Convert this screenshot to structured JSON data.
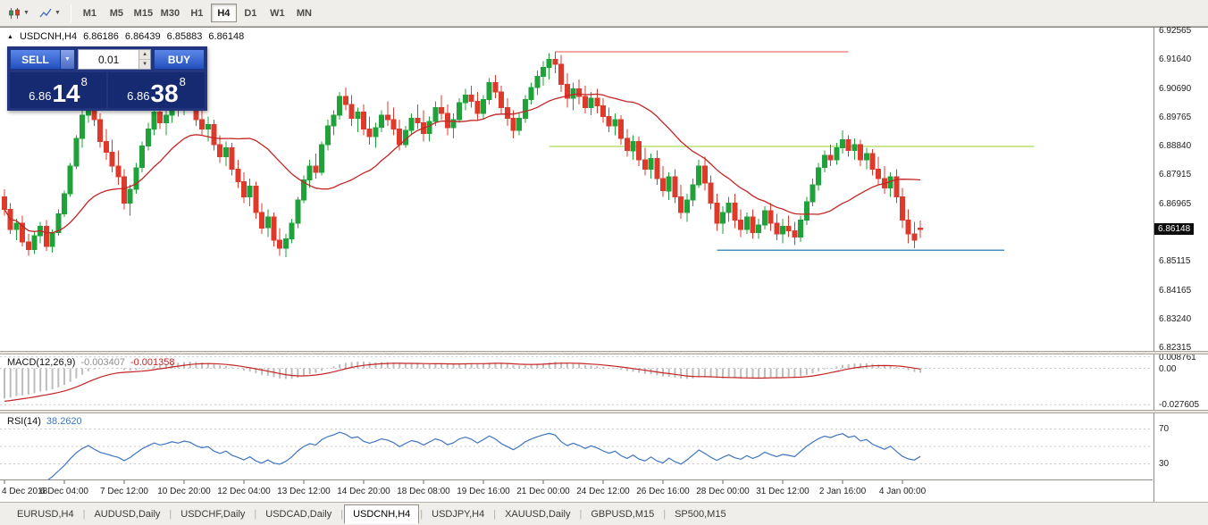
{
  "toolbar": {
    "icons": [
      "candlestick-chart-icon",
      "trendline-icon"
    ],
    "timeframes": [
      "M1",
      "M5",
      "M15",
      "M30",
      "H1",
      "H4",
      "D1",
      "W1",
      "MN"
    ],
    "active_timeframe": "H4"
  },
  "trade_panel": {
    "sell_label": "SELL",
    "buy_label": "BUY",
    "volume": "0.01",
    "sell_price": {
      "prefix": "6.86",
      "big": "14",
      "sup": "8"
    },
    "buy_price": {
      "prefix": "6.86",
      "big": "38",
      "sup": "8"
    }
  },
  "chart": {
    "header": {
      "symbol": "USDCNH,H4",
      "open": "6.86186",
      "high": "6.86439",
      "low": "6.85883",
      "close": "6.86148"
    },
    "price_axis": [
      "6.92565",
      "6.91640",
      "6.90690",
      "6.89765",
      "6.88840",
      "6.87915",
      "6.86965",
      "6.85115",
      "6.84165",
      "6.83240",
      "6.82315"
    ],
    "price_tag": "6.86148"
  },
  "macd_panel": {
    "title": "MACD(12,26,9)",
    "value_main": "-0.003407",
    "value_signal": "-0.001358",
    "axis_labels": [
      "0.008761",
      "0.00",
      "-0.027605"
    ]
  },
  "rsi_panel": {
    "title": "RSI(14)",
    "value": "38.2620",
    "axis_labels": [
      "70",
      "30"
    ]
  },
  "tabs": {
    "active_index": 4,
    "items": [
      "EURUSD,H4",
      "AUDUSD,Daily",
      "USDCHF,Daily",
      "USDCAD,Daily",
      "USDCNH,H4",
      "USDJPY,H4",
      "XAUUSD,Daily",
      "GBPUSD,M15",
      "SP500,M15"
    ]
  },
  "chart_data": {
    "type": "candlestick",
    "title": "USDCNH,H4",
    "y_range": [
      6.8222,
      6.9268
    ],
    "label_step": 10,
    "x_labels": [
      "4 Dec 2018",
      "6 Dec 04:00",
      "7 Dec 12:00",
      "10 Dec 20:00",
      "12 Dec 04:00",
      "13 Dec 12:00",
      "14 Dec 20:00",
      "18 Dec 08:00",
      "19 Dec 16:00",
      "21 Dec 00:00",
      "24 Dec 12:00",
      "26 Dec 16:00",
      "28 Dec 00:00",
      "31 Dec 12:00",
      "2 Jan 16:00",
      "4 Jan 00:00"
    ],
    "colors": {
      "up": "#1fa23a",
      "down": "#dd3a2c",
      "ma": "#c42525",
      "hist": "#bdbdbd",
      "signal": "#c42525",
      "rsi": "#3e74c0",
      "levels": "#c9c9c9"
    },
    "overlays": {
      "ma": {
        "type": "sma",
        "period": 20,
        "color": "#c42525"
      },
      "hlines": [
        {
          "name": "resistance-line",
          "price": 6.919,
          "from_bar": 92,
          "to_bar": 141,
          "color": "#e0524a"
        },
        {
          "name": "mid-line",
          "price": 6.8884,
          "from_bar": 91,
          "to_bar": 172,
          "color": "#9acd32"
        },
        {
          "name": "support-line",
          "price": 6.8548,
          "from_bar": 119,
          "to_bar": 167,
          "color": "#4a90c4"
        }
      ]
    },
    "macd": {
      "params": "12,26,9",
      "range": [
        -0.0315,
        0.0105
      ],
      "axis_levels": [
        0.008761,
        0,
        -0.027605
      ],
      "current_main": -0.003407,
      "current_signal": -0.001358
    },
    "rsi": {
      "period": 14,
      "range": [
        12,
        88
      ],
      "levels": [
        70,
        50,
        30
      ],
      "current": 38.262
    },
    "candles": [
      [
        6.872,
        6.8745,
        6.866,
        6.868
      ],
      [
        6.868,
        6.87,
        6.86,
        6.8615
      ],
      [
        6.8615,
        6.865,
        6.858,
        6.8635
      ],
      [
        6.8635,
        6.866,
        6.856,
        6.8575
      ],
      [
        6.8575,
        6.86,
        6.853,
        6.855
      ],
      [
        6.855,
        6.861,
        6.8535,
        6.8595
      ],
      [
        6.8595,
        6.864,
        6.857,
        6.8625
      ],
      [
        6.8625,
        6.8645,
        6.8545,
        6.856
      ],
      [
        6.856,
        6.8615,
        6.854,
        6.8605
      ],
      [
        6.8605,
        6.868,
        6.8595,
        6.8665
      ],
      [
        6.8665,
        6.874,
        6.8655,
        6.873
      ],
      [
        6.873,
        6.883,
        6.872,
        6.882
      ],
      [
        6.882,
        6.892,
        6.881,
        6.891
      ],
      [
        6.891,
        6.9,
        6.888,
        6.8985
      ],
      [
        6.8985,
        6.9055,
        6.896,
        6.904
      ],
      [
        6.904,
        6.906,
        6.895,
        6.897
      ],
      [
        6.897,
        6.899,
        6.888,
        6.89
      ],
      [
        6.89,
        6.894,
        6.884,
        6.8865
      ],
      [
        6.8865,
        6.8905,
        6.88,
        6.882
      ],
      [
        6.882,
        6.887,
        6.876,
        6.8785
      ],
      [
        6.8785,
        6.881,
        6.868,
        6.87
      ],
      [
        6.87,
        6.876,
        6.866,
        6.8745
      ],
      [
        6.8745,
        6.883,
        6.873,
        6.8815
      ],
      [
        6.8815,
        6.89,
        6.88,
        6.8885
      ],
      [
        6.8885,
        6.896,
        6.887,
        6.894
      ],
      [
        6.894,
        6.901,
        6.892,
        6.8995
      ],
      [
        6.8995,
        6.903,
        6.894,
        6.896
      ],
      [
        6.896,
        6.9,
        6.892,
        6.8985
      ],
      [
        6.8985,
        6.904,
        6.896,
        6.902
      ],
      [
        6.902,
        6.9045,
        6.898,
        6.9
      ],
      [
        6.9,
        6.905,
        6.8985,
        6.9035
      ],
      [
        6.9035,
        6.906,
        6.9,
        6.902
      ],
      [
        6.902,
        6.904,
        6.895,
        6.897
      ],
      [
        6.897,
        6.9,
        6.892,
        6.894
      ],
      [
        6.894,
        6.898,
        6.89,
        6.8955
      ],
      [
        6.8955,
        6.897,
        6.887,
        6.889
      ],
      [
        6.889,
        6.892,
        6.883,
        6.885
      ],
      [
        6.885,
        6.89,
        6.882,
        6.888
      ],
      [
        6.888,
        6.8895,
        6.879,
        6.881
      ],
      [
        6.881,
        6.884,
        6.875,
        6.877
      ],
      [
        6.877,
        6.88,
        6.87,
        6.872
      ],
      [
        6.872,
        6.878,
        6.869,
        6.8755
      ],
      [
        6.8755,
        6.877,
        6.865,
        6.867
      ],
      [
        6.867,
        6.87,
        6.86,
        6.862
      ],
      [
        6.862,
        6.868,
        6.859,
        6.8655
      ],
      [
        6.8655,
        6.867,
        6.856,
        6.858
      ],
      [
        6.858,
        6.862,
        6.853,
        6.8555
      ],
      [
        6.8555,
        6.86,
        6.8525,
        6.8585
      ],
      [
        6.8585,
        6.865,
        6.857,
        6.8635
      ],
      [
        6.8635,
        6.872,
        6.862,
        6.871
      ],
      [
        6.871,
        6.879,
        6.87,
        6.8775
      ],
      [
        6.8775,
        6.884,
        6.875,
        6.882
      ],
      [
        6.882,
        6.886,
        6.878,
        6.88
      ],
      [
        6.88,
        6.89,
        6.879,
        6.889
      ],
      [
        6.889,
        6.897,
        6.887,
        6.895
      ],
      [
        6.895,
        6.9,
        6.892,
        6.8985
      ],
      [
        6.8985,
        6.906,
        6.897,
        6.9045
      ],
      [
        6.9045,
        6.9075,
        6.9,
        6.902
      ],
      [
        6.902,
        6.905,
        6.895,
        6.8975
      ],
      [
        6.8975,
        6.901,
        6.893,
        6.8995
      ],
      [
        6.8995,
        6.902,
        6.892,
        6.894
      ],
      [
        6.894,
        6.898,
        6.889,
        6.8915
      ],
      [
        6.8915,
        6.896,
        6.888,
        6.8945
      ],
      [
        6.8945,
        6.9,
        6.893,
        6.8985
      ],
      [
        6.8985,
        6.903,
        6.895,
        6.897
      ],
      [
        6.897,
        6.901,
        6.892,
        6.894
      ],
      [
        6.894,
        6.897,
        6.887,
        6.889
      ],
      [
        6.889,
        6.895,
        6.888,
        6.8935
      ],
      [
        6.8935,
        6.899,
        6.892,
        6.8975
      ],
      [
        6.8975,
        6.902,
        6.894,
        6.896
      ],
      [
        6.896,
        6.9,
        6.89,
        6.8925
      ],
      [
        6.8925,
        6.898,
        6.89,
        6.8965
      ],
      [
        6.8965,
        6.903,
        6.895,
        6.901
      ],
      [
        6.901,
        6.905,
        6.897,
        6.899
      ],
      [
        6.899,
        6.902,
        6.892,
        6.8945
      ],
      [
        6.8945,
        6.899,
        6.891,
        6.897
      ],
      [
        6.897,
        6.904,
        6.896,
        6.9025
      ],
      [
        6.9025,
        6.907,
        6.9,
        6.905
      ],
      [
        6.905,
        6.908,
        6.901,
        6.903
      ],
      [
        6.903,
        6.906,
        6.897,
        6.899
      ],
      [
        6.899,
        6.905,
        6.8975,
        6.9035
      ],
      [
        6.9035,
        6.9105,
        6.902,
        6.909
      ],
      [
        6.909,
        6.9115,
        6.904,
        6.906
      ],
      [
        6.906,
        6.908,
        6.899,
        6.901
      ],
      [
        6.901,
        6.904,
        6.895,
        6.8975
      ],
      [
        6.8975,
        6.9,
        6.891,
        6.8935
      ],
      [
        6.8935,
        6.899,
        6.892,
        6.8975
      ],
      [
        6.8975,
        6.905,
        6.896,
        6.9035
      ],
      [
        6.9035,
        6.909,
        6.902,
        6.9075
      ],
      [
        6.9075,
        6.913,
        6.905,
        6.911
      ],
      [
        6.911,
        6.916,
        6.908,
        6.914
      ],
      [
        6.914,
        6.9185,
        6.91,
        6.9165
      ],
      [
        6.9165,
        6.919,
        6.912,
        6.915
      ],
      [
        6.915,
        6.918,
        6.906,
        6.9085
      ],
      [
        6.9085,
        6.912,
        6.901,
        6.904
      ],
      [
        6.904,
        6.909,
        6.9,
        6.907
      ],
      [
        6.907,
        6.91,
        6.902,
        6.9045
      ],
      [
        6.9045,
        6.908,
        6.899,
        6.901
      ],
      [
        6.901,
        6.906,
        6.8985,
        6.904
      ],
      [
        6.904,
        6.907,
        6.899,
        6.9015
      ],
      [
        6.9015,
        6.904,
        6.896,
        6.898
      ],
      [
        6.898,
        6.901,
        6.893,
        6.895
      ],
      [
        6.895,
        6.899,
        6.892,
        6.897
      ],
      [
        6.897,
        6.8985,
        6.889,
        6.891
      ],
      [
        6.891,
        6.894,
        6.885,
        6.887
      ],
      [
        6.887,
        6.892,
        6.884,
        6.89
      ],
      [
        6.89,
        6.8915,
        6.882,
        6.884
      ],
      [
        6.884,
        6.888,
        6.879,
        6.881
      ],
      [
        6.881,
        6.886,
        6.878,
        6.8845
      ],
      [
        6.8845,
        6.887,
        6.876,
        6.878
      ],
      [
        6.878,
        6.882,
        6.872,
        6.874
      ],
      [
        6.874,
        6.88,
        6.871,
        6.8785
      ],
      [
        6.8785,
        6.881,
        6.87,
        6.872
      ],
      [
        6.872,
        6.876,
        6.865,
        6.867
      ],
      [
        6.867,
        6.873,
        6.864,
        6.871
      ],
      [
        6.871,
        6.878,
        6.869,
        6.876
      ],
      [
        6.876,
        6.884,
        6.875,
        6.882
      ],
      [
        6.882,
        6.885,
        6.874,
        6.8765
      ],
      [
        6.8765,
        6.879,
        6.868,
        6.87
      ],
      [
        6.87,
        6.873,
        6.861,
        6.8635
      ],
      [
        6.8635,
        6.869,
        6.86,
        6.867
      ],
      [
        6.867,
        6.872,
        6.864,
        6.87
      ],
      [
        6.87,
        6.873,
        6.862,
        6.8645
      ],
      [
        6.8645,
        6.868,
        6.859,
        6.8615
      ],
      [
        6.8615,
        6.867,
        6.86,
        6.8655
      ],
      [
        6.8655,
        6.868,
        6.8585,
        6.8605
      ],
      [
        6.8605,
        6.865,
        6.8585,
        6.863
      ],
      [
        6.863,
        6.869,
        6.8615,
        6.8675
      ],
      [
        6.8675,
        6.87,
        6.861,
        6.8635
      ],
      [
        6.8635,
        6.8665,
        6.858,
        6.86
      ],
      [
        6.86,
        6.865,
        6.857,
        6.8625
      ],
      [
        6.8625,
        6.866,
        6.859,
        6.861
      ],
      [
        6.861,
        6.864,
        6.8565,
        6.859
      ],
      [
        6.859,
        6.866,
        6.8575,
        6.8645
      ],
      [
        6.8645,
        6.872,
        6.863,
        6.8705
      ],
      [
        6.8705,
        6.878,
        6.869,
        6.876
      ],
      [
        6.876,
        6.883,
        6.874,
        6.8815
      ],
      [
        6.8815,
        6.887,
        6.88,
        6.8855
      ],
      [
        6.8855,
        6.889,
        6.882,
        6.884
      ],
      [
        6.884,
        6.8895,
        6.8825,
        6.888
      ],
      [
        6.888,
        6.8935,
        6.886,
        6.8905
      ],
      [
        6.8905,
        6.892,
        6.885,
        6.887
      ],
      [
        6.887,
        6.891,
        6.884,
        6.889
      ],
      [
        6.889,
        6.8905,
        6.882,
        6.884
      ],
      [
        6.884,
        6.888,
        6.881,
        6.886
      ],
      [
        6.886,
        6.8875,
        6.879,
        6.881
      ],
      [
        6.881,
        6.885,
        6.876,
        6.878
      ],
      [
        6.878,
        6.882,
        6.873,
        6.875
      ],
      [
        6.875,
        6.88,
        6.872,
        6.8785
      ],
      [
        6.8785,
        6.881,
        6.87,
        6.872
      ],
      [
        6.872,
        6.875,
        6.862,
        6.8645
      ],
      [
        6.8645,
        6.868,
        6.857,
        6.86
      ],
      [
        6.86,
        6.864,
        6.8555,
        6.858
      ],
      [
        6.8619,
        6.8644,
        6.8588,
        6.8615
      ]
    ]
  }
}
